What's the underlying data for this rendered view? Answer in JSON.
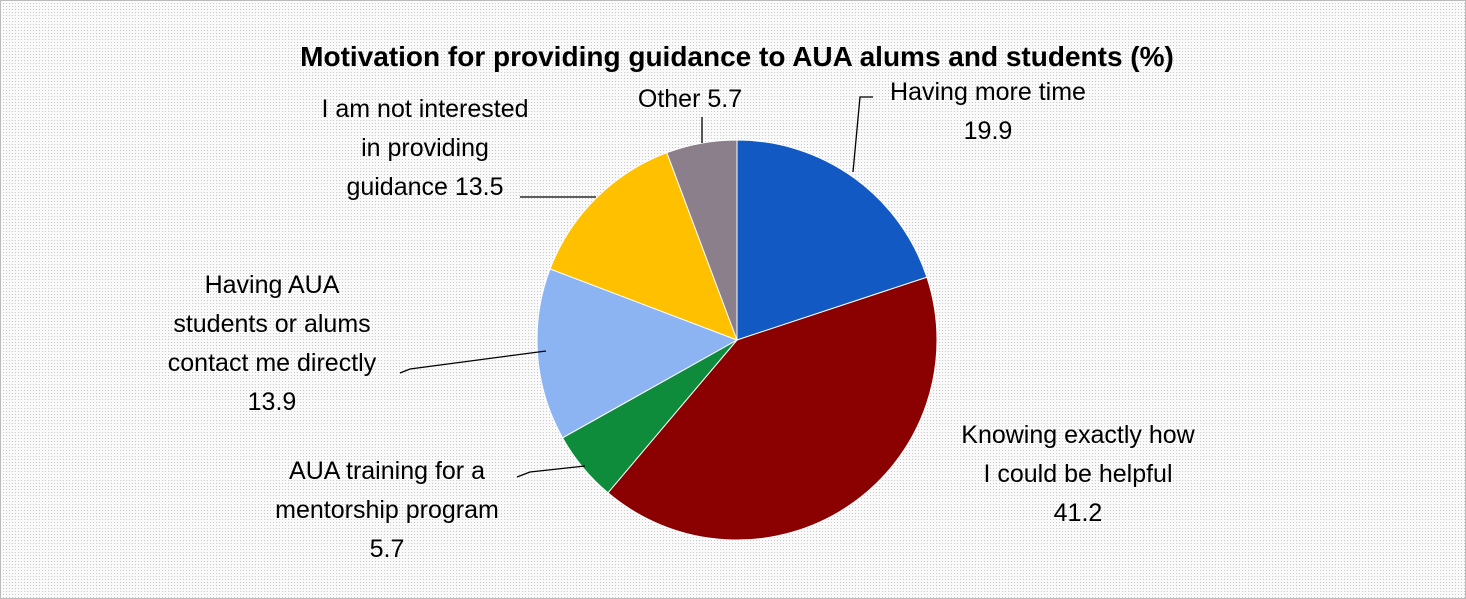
{
  "chart_data": {
    "type": "pie",
    "title": "Motivation for providing guidance to AUA alums and students (%)",
    "categories": [
      "Having more time",
      "Knowing exactly how I could be helpful",
      "AUA training for a mentorship program",
      "Having AUA students or alums contact me directly",
      "I am not interested in providing guidance",
      "Other"
    ],
    "values": [
      19.9,
      41.2,
      5.7,
      13.9,
      13.5,
      5.7
    ],
    "colors": [
      "#1259c3",
      "#8b0000",
      "#0e8c3c",
      "#8cb4f2",
      "#ffc000",
      "#8a7f8b"
    ]
  }
}
